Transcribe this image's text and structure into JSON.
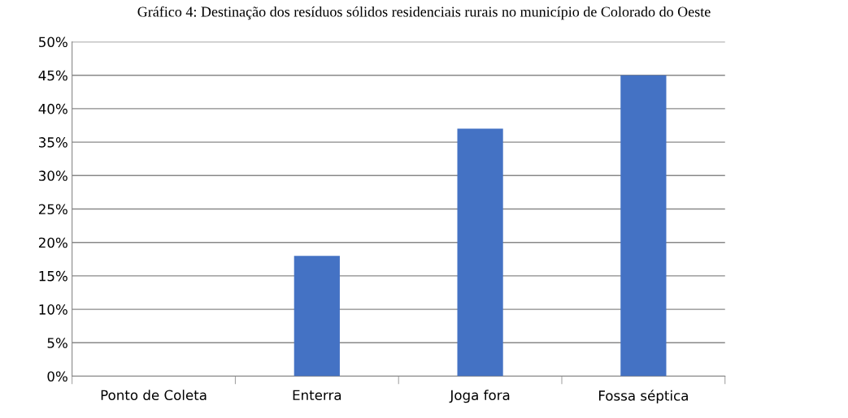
{
  "chart_data": {
    "type": "bar",
    "title": "Gráfico 4: Destinação dos resíduos sólidos residenciais rurais no município de Colorado do Oeste",
    "categories": [
      "Ponto de Coleta",
      "Enterra",
      "Joga fora",
      "Fossa séptica"
    ],
    "values": [
      0,
      18,
      37,
      45
    ],
    "color": "#4472c4",
    "ylim": [
      0,
      50
    ],
    "yticks": [
      {
        "value": 0,
        "label": "0%"
      },
      {
        "value": 5,
        "label": "5%"
      },
      {
        "value": 10,
        "label": "10%"
      },
      {
        "value": 15,
        "label": "15%"
      },
      {
        "value": 20,
        "label": "20%"
      },
      {
        "value": 25,
        "label": "25%"
      },
      {
        "value": 30,
        "label": "30%"
      },
      {
        "value": 35,
        "label": "35%"
      },
      {
        "value": 40,
        "label": "40%"
      },
      {
        "value": 45,
        "label": "45%"
      },
      {
        "value": 50,
        "label": "50%"
      }
    ],
    "grid": "y"
  }
}
